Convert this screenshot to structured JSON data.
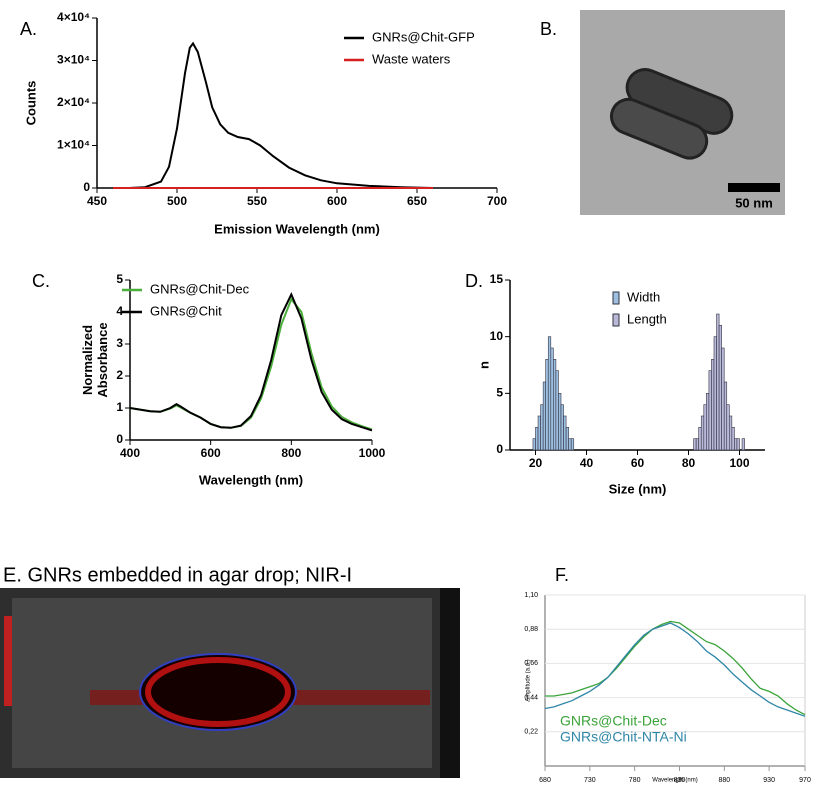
{
  "chart_data": [
    {
      "type": "line",
      "panel_label": "A.",
      "xlabel": "Emission Wavelength (nm)",
      "ylabel": "Counts",
      "x": [
        460,
        470,
        480,
        490,
        495,
        500,
        505,
        508,
        510,
        513,
        518,
        522,
        527,
        532,
        538,
        545,
        552,
        560,
        570,
        580,
        590,
        600,
        620,
        640,
        660
      ],
      "series": [
        {
          "name": "GNRs@Chit-GFP",
          "color": "#000000",
          "values": [
            0,
            0,
            200,
            1500,
            5000,
            14000,
            27000,
            33000,
            34000,
            32000,
            25000,
            19000,
            15000,
            13000,
            12000,
            11500,
            10000,
            7500,
            4800,
            3000,
            1800,
            1100,
            500,
            200,
            0
          ]
        },
        {
          "name": "Waste waters",
          "color": "#d62020",
          "values": [
            0,
            0,
            0,
            0,
            0,
            0,
            0,
            0,
            0,
            0,
            0,
            0,
            0,
            0,
            0,
            0,
            0,
            0,
            0,
            0,
            0,
            0,
            0,
            0,
            0
          ]
        }
      ],
      "xlim": [
        450,
        700
      ],
      "xticks": [
        450,
        500,
        550,
        600,
        650,
        700
      ],
      "ylim": [
        0,
        40000
      ],
      "yticks": [
        0,
        {
          "value": 10000,
          "label": "1×10⁴"
        },
        {
          "value": 20000,
          "label": "2×10⁴"
        },
        {
          "value": 30000,
          "label": "3×10⁴"
        },
        {
          "value": 40000,
          "label": "4×10⁴"
        }
      ],
      "legend": "upper right"
    },
    {
      "type": "line",
      "panel_label": "C.",
      "xlabel": "Wavelength (nm)",
      "ylabel": [
        "Normalized",
        "Absorbance"
      ],
      "x": [
        400,
        425,
        450,
        475,
        500,
        515,
        525,
        550,
        575,
        600,
        625,
        650,
        675,
        700,
        725,
        750,
        775,
        800,
        825,
        850,
        875,
        900,
        925,
        950,
        975,
        1000
      ],
      "series": [
        {
          "name": "GNRs@Chit-Dec",
          "color": "#4caf3c",
          "values": [
            1.0,
            0.95,
            0.9,
            0.88,
            0.98,
            1.08,
            1.02,
            0.85,
            0.7,
            0.5,
            0.4,
            0.38,
            0.44,
            0.7,
            1.3,
            2.3,
            3.6,
            4.4,
            4.0,
            2.7,
            1.65,
            1.05,
            0.72,
            0.55,
            0.43,
            0.33
          ]
        },
        {
          "name": "GNRs@Chit",
          "color": "#000000",
          "values": [
            1.0,
            0.95,
            0.9,
            0.88,
            1.0,
            1.12,
            1.05,
            0.85,
            0.7,
            0.5,
            0.4,
            0.38,
            0.45,
            0.75,
            1.4,
            2.5,
            3.9,
            4.55,
            3.8,
            2.5,
            1.5,
            0.95,
            0.65,
            0.5,
            0.4,
            0.3
          ]
        }
      ],
      "xlim": [
        400,
        1000
      ],
      "xticks": [
        400,
        600,
        800,
        1000
      ],
      "ylim": [
        0,
        5
      ],
      "yticks": [
        0,
        1,
        2,
        3,
        4,
        5
      ],
      "legend": "upper left"
    },
    {
      "type": "histogram",
      "panel_label": "D.",
      "xlabel": "Size (nm)",
      "ylabel": "n",
      "series": [
        {
          "name": "Width",
          "color": "#9dbfe0",
          "bins": [
            19,
            20,
            21,
            22,
            23,
            24,
            25,
            26,
            27,
            28,
            29,
            30,
            31,
            32,
            33,
            34,
            35
          ],
          "values": [
            1,
            2,
            3,
            4,
            6,
            8,
            10,
            9,
            8,
            7,
            5,
            4,
            3,
            2,
            1,
            1
          ]
        },
        {
          "name": "Length",
          "color": "#b8b8d8",
          "bins": [
            82,
            83,
            84,
            85,
            86,
            87,
            88,
            89,
            90,
            91,
            92,
            93,
            94,
            95,
            96,
            97,
            98,
            99,
            100,
            101,
            102
          ],
          "values": [
            1,
            1,
            2,
            3,
            4,
            5,
            7,
            8,
            10,
            12,
            11,
            9,
            6,
            4,
            3,
            2,
            1,
            1,
            0,
            1
          ]
        }
      ],
      "xlim": [
        10,
        110
      ],
      "xticks": [
        20,
        40,
        60,
        80,
        100
      ],
      "ylim": [
        0,
        15
      ],
      "yticks": [
        0,
        5,
        10,
        15
      ],
      "legend": "upper center"
    },
    {
      "type": "line",
      "panel_label": "F.",
      "xlabel": "Wavelength (nm)",
      "ylabel": "Amplitude (a.u.)",
      "x": [
        680,
        690,
        700,
        710,
        720,
        730,
        740,
        750,
        760,
        770,
        780,
        790,
        800,
        810,
        820,
        830,
        840,
        850,
        860,
        870,
        880,
        890,
        900,
        910,
        920,
        930,
        940,
        950,
        960,
        970
      ],
      "series": [
        {
          "name": "GNRs@Chit-Dec",
          "color": "#3aa33a",
          "values": [
            0.45,
            0.45,
            0.46,
            0.47,
            0.49,
            0.51,
            0.53,
            0.57,
            0.63,
            0.7,
            0.77,
            0.83,
            0.88,
            0.91,
            0.93,
            0.92,
            0.88,
            0.84,
            0.8,
            0.78,
            0.74,
            0.69,
            0.63,
            0.56,
            0.5,
            0.48,
            0.45,
            0.4,
            0.36,
            0.33
          ]
        },
        {
          "name": "GNRs@Chit-NTA-Ni",
          "color": "#2f86a6",
          "values": [
            0.37,
            0.38,
            0.4,
            0.42,
            0.45,
            0.48,
            0.52,
            0.57,
            0.64,
            0.71,
            0.78,
            0.84,
            0.88,
            0.9,
            0.92,
            0.89,
            0.85,
            0.8,
            0.74,
            0.7,
            0.65,
            0.59,
            0.54,
            0.49,
            0.45,
            0.41,
            0.38,
            0.36,
            0.34,
            0.32
          ]
        }
      ],
      "xlim": [
        680,
        970
      ],
      "xticks": [
        680,
        730,
        780,
        830,
        880,
        930,
        970
      ],
      "ylim": [
        0,
        1.1
      ],
      "yticks": [
        {
          "value": 0.22,
          "label": "0,22"
        },
        {
          "value": 0.44,
          "label": "0,44"
        },
        {
          "value": 0.66,
          "label": "0,66"
        },
        {
          "value": 0.88,
          "label": "0,88"
        },
        {
          "value": 1.1,
          "label": "1,10"
        }
      ],
      "legend": "lower left"
    }
  ],
  "images": [
    {
      "panel_label": "B.",
      "scale_bar": "50 nm"
    },
    {
      "panel_label": "E. GNRs embedded in agar drop; NIR-I"
    }
  ]
}
